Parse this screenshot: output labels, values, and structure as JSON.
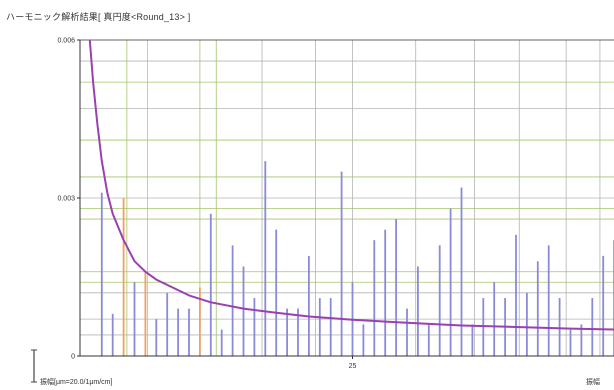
{
  "chart_data": {
    "type": "bar",
    "title": "ハーモニック解析結果[ 真円度<Round_13> ]",
    "xlabel": "",
    "ylabel": "",
    "xlim": [
      0,
      50
    ],
    "ylim": [
      0,
      0.006
    ],
    "grid": true,
    "y_tick_labels": [
      {
        "value": 0,
        "label": "0"
      },
      {
        "value": 0.003,
        "label": "0.003"
      },
      {
        "value": 0.006,
        "label": "0.006"
      }
    ],
    "x_tick_labels": [
      {
        "value": 25,
        "label": "25"
      }
    ],
    "footer_left": "振幅[μm=20.0/1μm/cm]",
    "footer_right": "振幅",
    "colors": {
      "bar_blue": "#8a8ad8",
      "bar_orange": "#f0a060",
      "curve": "#9a40b0",
      "grid_gray": "#b4b4b4",
      "grid_green": "#a6c46a",
      "grid_orange": "#e6b070"
    },
    "series": [
      {
        "kind": "bars",
        "x": [
          2,
          3,
          4,
          5,
          6,
          7,
          8,
          9,
          10,
          11,
          12,
          13,
          14,
          15,
          16,
          17,
          18,
          19,
          20,
          21,
          22,
          23,
          24,
          25,
          26,
          27,
          28,
          29,
          30,
          31,
          32,
          33,
          34,
          35,
          36,
          37,
          38,
          39,
          40,
          41,
          42,
          43,
          44,
          45,
          46,
          47,
          48,
          49
        ],
        "values": [
          0.0031,
          0.0008,
          0.003,
          0.0014,
          0.0016,
          0.0007,
          0.0012,
          0.0009,
          0.0009,
          0.0013,
          0.0027,
          0.0005,
          0.0021,
          0.0017,
          0.0011,
          0.0037,
          0.0024,
          0.0009,
          0.0009,
          0.0019,
          0.0011,
          0.0011,
          0.0035,
          0.0014,
          0.0006,
          0.0022,
          0.0024,
          0.0026,
          0.0009,
          0.0017,
          0.0006,
          0.0021,
          0.0028,
          0.0032,
          0.0006,
          0.0011,
          0.0014,
          0.0011,
          0.0023,
          0.0012,
          0.0018,
          0.0021,
          0.0011,
          0.0005,
          0.0006,
          0.0011,
          0.0019,
          0.0022
        ]
      },
      {
        "kind": "curve",
        "x": [
          0.9,
          1.2,
          1.6,
          2,
          2.5,
          3,
          4,
          5,
          6,
          7,
          8,
          10,
          12,
          15,
          18,
          21,
          25,
          30,
          35,
          40,
          45,
          50
        ],
        "values": [
          0.006,
          0.0052,
          0.0044,
          0.0037,
          0.0031,
          0.0027,
          0.0022,
          0.0018,
          0.0016,
          0.00145,
          0.00135,
          0.00115,
          0.00102,
          0.0009,
          0.00082,
          0.00075,
          0.00069,
          0.00063,
          0.00058,
          0.00055,
          0.00052,
          0.0005
        ]
      }
    ]
  }
}
